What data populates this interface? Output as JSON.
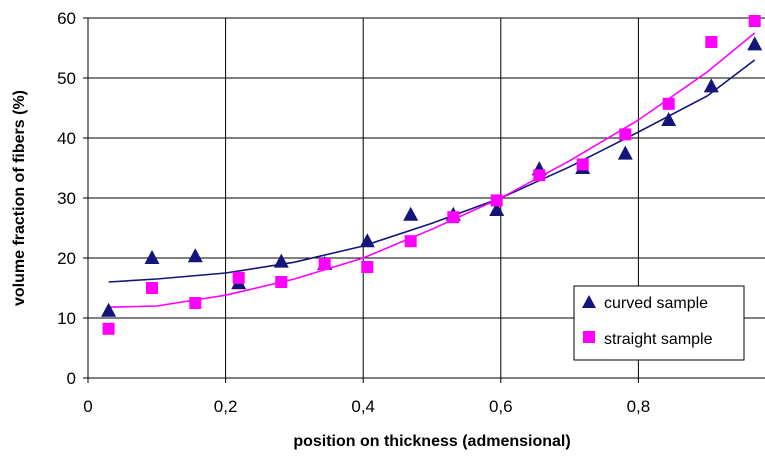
{
  "chart_data": {
    "type": "scatter",
    "xlabel": "position on thickness (admensional)",
    "ylabel": "volume fraction of fibers (%)",
    "xlim": [
      0,
      1
    ],
    "ylim": [
      0,
      60
    ],
    "grid": true,
    "legend_position": "bottom-right",
    "x_ticks": [
      "0",
      "0,2",
      "0,4",
      "0,6",
      "0,8"
    ],
    "y_ticks": [
      "0",
      "10",
      "20",
      "30",
      "40",
      "50",
      "60"
    ],
    "series": [
      {
        "name": "curved sample",
        "marker": "triangle",
        "color": "#14147a",
        "x": [
          0.03,
          0.093,
          0.156,
          0.219,
          0.281,
          0.344,
          0.406,
          0.469,
          0.531,
          0.594,
          0.656,
          0.719,
          0.781,
          0.844,
          0.906,
          0.969
        ],
        "y": [
          11.2,
          20.0,
          20.3,
          15.8,
          19.4,
          19.0,
          22.8,
          27.2,
          27.2,
          28.0,
          34.8,
          35.0,
          37.4,
          43.0,
          48.6,
          55.6
        ],
        "trend": {
          "x": [
            0.03,
            0.1,
            0.2,
            0.3,
            0.4,
            0.5,
            0.6,
            0.7,
            0.8,
            0.9,
            0.969
          ],
          "y": [
            16.0,
            16.5,
            17.5,
            19.3,
            22.0,
            25.8,
            30.0,
            35.2,
            41.0,
            47.0,
            53.0
          ]
        }
      },
      {
        "name": "straight sample",
        "marker": "square",
        "color": "#ff00ff",
        "x": [
          0.03,
          0.093,
          0.156,
          0.219,
          0.281,
          0.344,
          0.406,
          0.469,
          0.531,
          0.594,
          0.656,
          0.719,
          0.781,
          0.844,
          0.906,
          0.969
        ],
        "y": [
          8.2,
          15.0,
          12.5,
          16.7,
          16.0,
          19.0,
          18.5,
          22.8,
          26.8,
          29.6,
          33.8,
          35.6,
          40.6,
          45.7,
          56.0,
          59.5
        ],
        "trend": {
          "x": [
            0.03,
            0.1,
            0.2,
            0.3,
            0.4,
            0.5,
            0.6,
            0.7,
            0.8,
            0.9,
            0.969
          ],
          "y": [
            11.8,
            12.0,
            13.8,
            16.5,
            20.0,
            24.8,
            30.0,
            36.2,
            43.0,
            51.0,
            57.5
          ]
        }
      }
    ]
  }
}
